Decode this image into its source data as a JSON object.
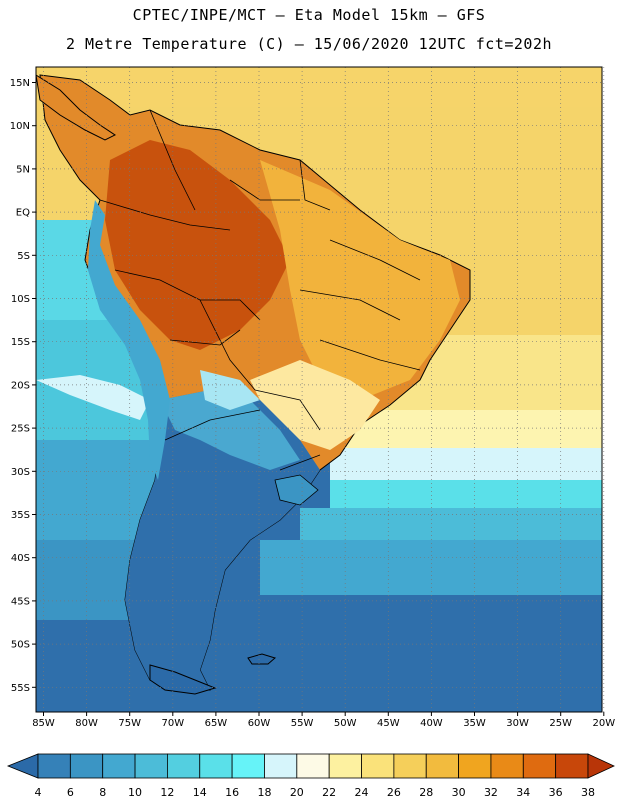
{
  "title_line1": "CPTEC/INPE/MCT –  Eta Model 15km – GFS",
  "title_line2": "2 Metre Temperature (C) – 15/06/2020 12UTC fct=202h",
  "lat_labels": [
    "15N",
    "10N",
    "5N",
    "EQ",
    "5S",
    "10S",
    "15S",
    "20S",
    "25S",
    "30S",
    "35S",
    "40S",
    "45S",
    "50S",
    "55S"
  ],
  "lon_labels": [
    "85W",
    "80W",
    "75W",
    "70W",
    "65W",
    "60W",
    "55W",
    "50W",
    "45W",
    "40W",
    "35W",
    "30W",
    "25W",
    "20W"
  ],
  "colorbar": {
    "labels": [
      "4",
      "6",
      "8",
      "10",
      "12",
      "14",
      "16",
      "18",
      "20",
      "22",
      "24",
      "26",
      "28",
      "30",
      "32",
      "34",
      "36",
      "38"
    ],
    "colors": [
      "#2b6aa8",
      "#3581b8",
      "#3b95c4",
      "#43a8d0",
      "#4cbcd8",
      "#53cfe0",
      "#5ae0e9",
      "#66f3f8",
      "#d6f5fb",
      "#fdfae6",
      "#fdf1a0",
      "#fae27a",
      "#f5cf5a",
      "#f2bb3e",
      "#f0a51f",
      "#e98a17",
      "#df6b10",
      "#c8470a",
      "#b83508"
    ]
  },
  "grid": "on"
}
